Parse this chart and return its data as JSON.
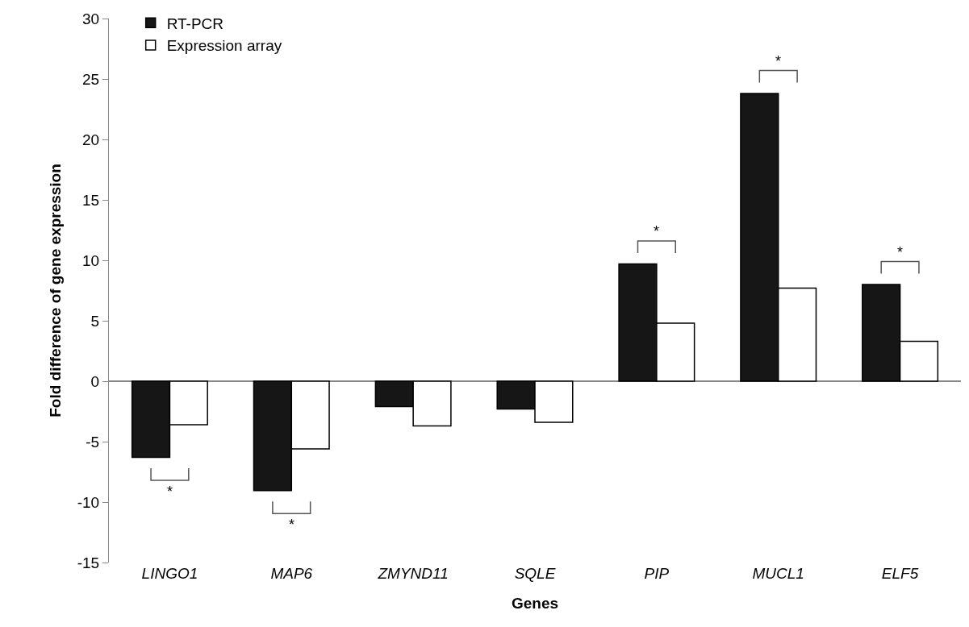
{
  "chart_data": {
    "type": "bar",
    "xlabel": "Genes",
    "ylabel": "Fold difference of gene expression",
    "categories": [
      "LINGO1",
      "MAP6",
      "ZMYND11",
      "SQLE",
      "PIP",
      "MUCL1",
      "ELF5"
    ],
    "series": [
      {
        "name": "RT-PCR",
        "color": "#161616",
        "values": [
          -6.3,
          -9.05,
          -2.1,
          -2.3,
          9.7,
          23.8,
          8.0
        ]
      },
      {
        "name": "Expression array",
        "color": "#ffffff",
        "values": [
          -3.6,
          -5.6,
          -3.7,
          -3.4,
          4.8,
          7.7,
          3.3
        ]
      }
    ],
    "ylim": [
      -15,
      30
    ],
    "yticks": [
      -15,
      -10,
      -5,
      0,
      5,
      10,
      15,
      20,
      25,
      30
    ],
    "legend": "top left",
    "annotations": [
      {
        "text": "*",
        "x": "LINGO1",
        "y": -6.3
      },
      {
        "text": "*",
        "x": "MAP6",
        "y": -9.05
      },
      {
        "text": "*",
        "x": "PIP",
        "y": 9.7
      },
      {
        "text": "*",
        "x": "MUCL1",
        "y": 23.8
      },
      {
        "text": "*",
        "x": "ELF5",
        "y": 8.0
      }
    ]
  }
}
